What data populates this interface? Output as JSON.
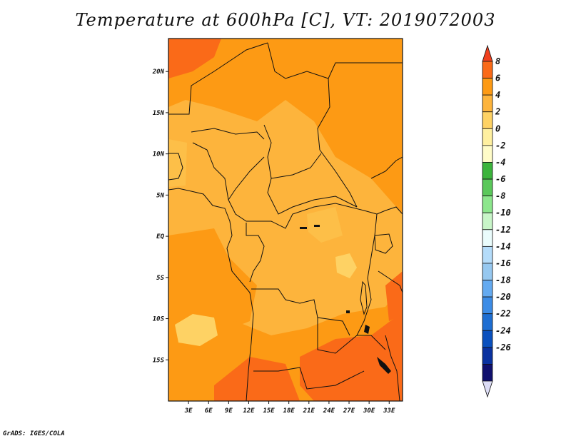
{
  "title": "Temperature at 600hPa [C], VT: 2019072003",
  "footer": "GrADS: IGES/COLA",
  "map": {
    "lon_range": [
      0,
      35
    ],
    "lat_range": [
      -20,
      24
    ],
    "lat_ticks": [
      {
        "value": 20,
        "label": "20N"
      },
      {
        "value": 15,
        "label": "15N"
      },
      {
        "value": 10,
        "label": "10N"
      },
      {
        "value": 5,
        "label": "5N"
      },
      {
        "value": 0,
        "label": "EQ"
      },
      {
        "value": -5,
        "label": "5S"
      },
      {
        "value": -10,
        "label": "10S"
      },
      {
        "value": -15,
        "label": "15S"
      }
    ],
    "lon_ticks": [
      {
        "value": 3,
        "label": "3E"
      },
      {
        "value": 6,
        "label": "6E"
      },
      {
        "value": 9,
        "label": "9E"
      },
      {
        "value": 12,
        "label": "12E"
      },
      {
        "value": 15,
        "label": "15E"
      },
      {
        "value": 18,
        "label": "18E"
      },
      {
        "value": 21,
        "label": "21E"
      },
      {
        "value": 24,
        "label": "24E"
      },
      {
        "value": 27,
        "label": "27E"
      },
      {
        "value": 30,
        "label": "30E"
      },
      {
        "value": 33,
        "label": "33E"
      }
    ]
  },
  "colorbar": {
    "labels": [
      "8",
      "6",
      "4",
      "2",
      "0",
      "-2",
      "-4",
      "-6",
      "-8",
      "-10",
      "-12",
      "-14",
      "-16",
      "-18",
      "-20",
      "-22",
      "-24",
      "-26"
    ],
    "colors": [
      "#f0401e",
      "#fa6a18",
      "#fd9a14",
      "#fdb43c",
      "#fed264",
      "#fff0a0",
      "#fffcc8",
      "#3cb43c",
      "#5ac85a",
      "#8ce68c",
      "#c8f5c8",
      "#eafcfc",
      "#b4dcfa",
      "#96c8f0",
      "#64aaf0",
      "#3c8ce6",
      "#1e6ed2",
      "#0a50be",
      "#0a32a0",
      "#10106e",
      "#dcdcf5"
    ]
  }
}
